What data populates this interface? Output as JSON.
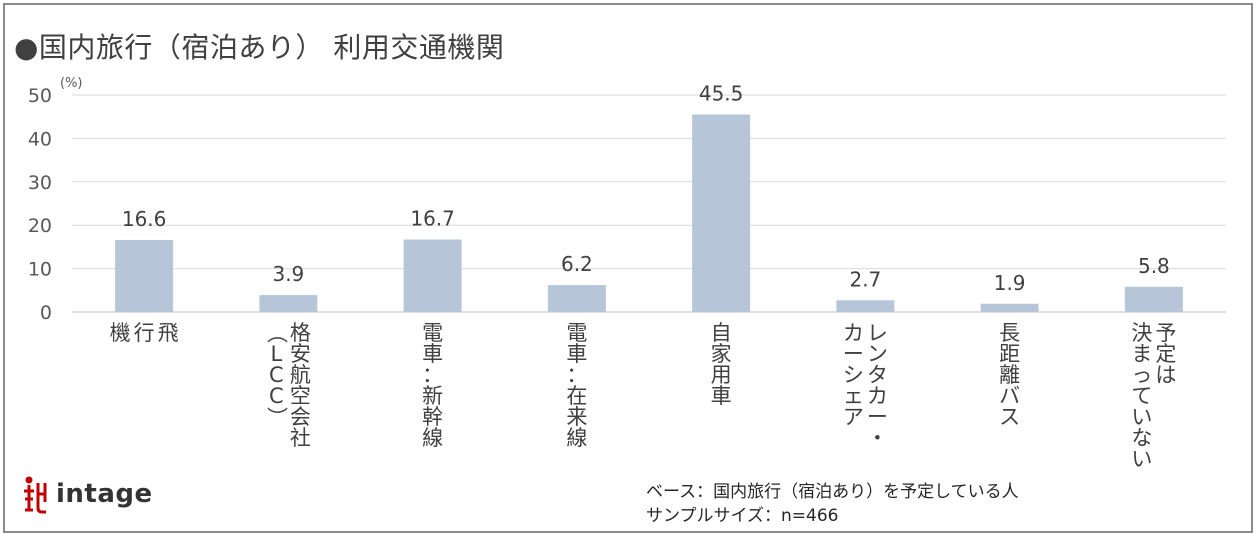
{
  "title": "●国内旅行（宿泊あり） 利用交通機関",
  "brand": "intage",
  "note": {
    "base": "ベース：国内旅行（宿泊あり）を予定している人",
    "sample": "サンプルサイズ：n=466"
  },
  "colors": {
    "bar": "#b7c5d8",
    "grid": "#d9d9d9",
    "axis": "#bfbfbf",
    "text": "#404040",
    "logo": "#c00000"
  },
  "chart_data": {
    "type": "bar",
    "unit": "(%)",
    "ylim": [
      0,
      50
    ],
    "yticks": [
      0,
      10,
      20,
      30,
      40,
      50
    ],
    "grid": true,
    "categories": [
      [
        "飛",
        "行",
        "機"
      ],
      [
        "格安航空会社",
        "（LCC）"
      ],
      [
        "電車：新幹線"
      ],
      [
        "電車：在来線"
      ],
      [
        "自家用車"
      ],
      [
        "レンタカー・",
        "カーシェア"
      ],
      [
        "長距離バス"
      ],
      [
        "予定は",
        "決まっていない"
      ]
    ],
    "values": [
      16.6,
      3.9,
      16.7,
      6.2,
      45.5,
      2.7,
      1.9,
      5.8
    ],
    "value_labels": [
      "16.6",
      "3.9",
      "16.7",
      "6.2",
      "45.5",
      "2.7",
      "1.9",
      "5.8"
    ]
  }
}
